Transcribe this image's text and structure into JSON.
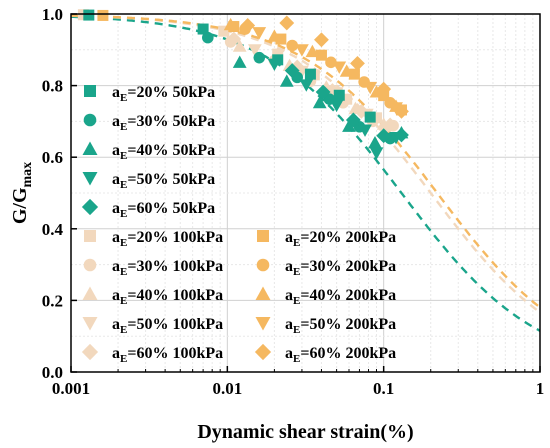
{
  "chart_data": {
    "type": "scatter",
    "title": "",
    "xlabel": "Dynamic shear strain(%)",
    "ylabel": {
      "main": "G/G",
      "sub": "max"
    },
    "x_scale": "log",
    "xlim": [
      0.001,
      1
    ],
    "ylim": [
      0.0,
      1.0
    ],
    "x_ticks": [
      {
        "value": 0.001,
        "label": "0.001"
      },
      {
        "value": 0.01,
        "label": "0.01"
      },
      {
        "value": 0.1,
        "label": "0.1"
      },
      {
        "value": 1,
        "label": "1"
      }
    ],
    "y_ticks": [
      {
        "value": 0.0,
        "label": "0.0"
      },
      {
        "value": 0.2,
        "label": "0.2"
      },
      {
        "value": 0.4,
        "label": "0.4"
      },
      {
        "value": 0.6,
        "label": "0.6"
      },
      {
        "value": 0.8,
        "label": "0.8"
      },
      {
        "value": 1.0,
        "label": "1.0"
      }
    ],
    "grid": true,
    "legend_placement": "bottom-left, two columns",
    "colors": {
      "50kPa": "#1aa58b",
      "100kPa": "#f2d8bd",
      "200kPa": "#f5b860"
    },
    "series": [
      {
        "name": "a_E=20% 50kPa",
        "legend_main": "a",
        "legend_sub": "E",
        "legend_rest": "=20% 50kPa",
        "group": "50kPa",
        "marker": "square",
        "points": [
          [
            0.0013,
            0.997
          ],
          [
            0.007,
            0.958
          ],
          [
            0.021,
            0.872
          ],
          [
            0.034,
            0.832
          ],
          [
            0.052,
            0.773
          ],
          [
            0.082,
            0.712
          ]
        ]
      },
      {
        "name": "a_E=30% 50kPa",
        "legend_main": "a",
        "legend_sub": "E",
        "legend_rest": "=30% 50kPa",
        "group": "50kPa",
        "marker": "circle",
        "points": [
          [
            0.0075,
            0.934
          ],
          [
            0.016,
            0.878
          ],
          [
            0.028,
            0.823
          ],
          [
            0.045,
            0.762
          ],
          [
            0.07,
            0.685
          ],
          [
            0.11,
            0.652
          ]
        ]
      },
      {
        "name": "a_E=40% 50kPa",
        "legend_main": "a",
        "legend_sub": "E",
        "legend_rest": "=40% 50kPa",
        "group": "50kPa",
        "marker": "triangle-up",
        "points": [
          [
            0.012,
            0.865
          ],
          [
            0.024,
            0.812
          ],
          [
            0.039,
            0.752
          ],
          [
            0.06,
            0.686
          ],
          [
            0.088,
            0.64
          ],
          [
            0.13,
            0.668
          ]
        ]
      },
      {
        "name": "a_E=50% 50kPa",
        "legend_main": "a",
        "legend_sub": "E",
        "legend_rest": "=50% 50kPa",
        "group": "50kPa",
        "marker": "triangle-down",
        "points": [
          [
            0.02,
            0.86
          ],
          [
            0.032,
            0.802
          ],
          [
            0.05,
            0.745
          ],
          [
            0.076,
            0.676
          ],
          [
            0.09,
            0.612
          ],
          [
            0.12,
            0.655
          ]
        ]
      },
      {
        "name": "a_E=60% 50kPa",
        "legend_main": "a",
        "legend_sub": "E",
        "legend_rest": "=60% 50kPa",
        "group": "50kPa",
        "marker": "diamond",
        "points": [
          [
            0.026,
            0.842
          ],
          [
            0.041,
            0.782
          ],
          [
            0.064,
            0.704
          ],
          [
            0.1,
            0.66
          ],
          [
            0.13,
            0.662
          ]
        ]
      },
      {
        "name": "a_E=20% 100kPa",
        "legend_main": "a",
        "legend_sub": "E",
        "legend_rest": "=20% 100kPa",
        "group": "100kPa",
        "marker": "square",
        "points": [
          [
            0.0012,
            0.998
          ],
          [
            0.0095,
            0.952
          ],
          [
            0.021,
            0.888
          ],
          [
            0.036,
            0.83
          ],
          [
            0.058,
            0.762
          ],
          [
            0.09,
            0.71
          ]
        ]
      },
      {
        "name": "a_E=30% 100kPa",
        "legend_main": "a",
        "legend_sub": "E",
        "legend_rest": "=30% 100kPa",
        "group": "100kPa",
        "marker": "circle",
        "points": [
          [
            0.0105,
            0.922
          ],
          [
            0.02,
            0.87
          ],
          [
            0.034,
            0.812
          ],
          [
            0.055,
            0.752
          ],
          [
            0.085,
            0.7
          ],
          [
            0.115,
            0.688
          ]
        ]
      },
      {
        "name": "a_E=40% 100kPa",
        "legend_main": "a",
        "legend_sub": "E",
        "legend_rest": "=40% 100kPa",
        "group": "100kPa",
        "marker": "triangle-up",
        "points": [
          [
            0.012,
            0.91
          ],
          [
            0.025,
            0.856
          ],
          [
            0.043,
            0.796
          ],
          [
            0.066,
            0.736
          ],
          [
            0.1,
            0.692
          ]
        ]
      },
      {
        "name": "a_E=50% 100kPa",
        "legend_main": "a",
        "legend_sub": "E",
        "legend_rest": "=50% 100kPa",
        "group": "100kPa",
        "marker": "triangle-down",
        "points": [
          [
            0.015,
            0.9
          ],
          [
            0.03,
            0.84
          ],
          [
            0.05,
            0.78
          ],
          [
            0.078,
            0.72
          ],
          [
            0.105,
            0.682
          ]
        ]
      },
      {
        "name": "a_E=60% 100kPa",
        "legend_main": "a",
        "legend_sub": "E",
        "legend_rest": "=60% 100kPa",
        "group": "100kPa",
        "marker": "diamond",
        "points": [
          [
            0.011,
            0.93
          ],
          [
            0.028,
            0.852
          ],
          [
            0.047,
            0.786
          ],
          [
            0.072,
            0.728
          ],
          [
            0.11,
            0.69
          ]
        ]
      },
      {
        "name": "a_E=20% 200kPa",
        "legend_main": "a",
        "legend_sub": "E",
        "legend_rest": "=20% 200kPa",
        "group": "200kPa",
        "marker": "square",
        "points": [
          [
            0.0016,
            0.996
          ],
          [
            0.011,
            0.965
          ],
          [
            0.022,
            0.93
          ],
          [
            0.04,
            0.885
          ],
          [
            0.065,
            0.832
          ],
          [
            0.1,
            0.772
          ],
          [
            0.13,
            0.732
          ]
        ]
      },
      {
        "name": "a_E=30% 200kPa",
        "legend_main": "a",
        "legend_sub": "E",
        "legend_rest": "=30% 200kPa",
        "group": "200kPa",
        "marker": "circle",
        "points": [
          [
            0.013,
            0.958
          ],
          [
            0.026,
            0.912
          ],
          [
            0.046,
            0.865
          ],
          [
            0.075,
            0.81
          ],
          [
            0.11,
            0.752
          ]
        ]
      },
      {
        "name": "a_E=40% 200kPa",
        "legend_main": "a",
        "legend_sub": "E",
        "legend_rest": "=40% 200kPa",
        "group": "200kPa",
        "marker": "triangle-up",
        "points": [
          [
            0.0105,
            0.97
          ],
          [
            0.02,
            0.938
          ],
          [
            0.035,
            0.895
          ],
          [
            0.058,
            0.84
          ],
          [
            0.09,
            0.782
          ],
          [
            0.12,
            0.742
          ]
        ]
      },
      {
        "name": "a_E=50% 200kPa",
        "legend_main": "a",
        "legend_sub": "E",
        "legend_rest": "=50% 200kPa",
        "group": "200kPa",
        "marker": "triangle-down",
        "points": [
          [
            0.016,
            0.948
          ],
          [
            0.03,
            0.9
          ],
          [
            0.052,
            0.852
          ],
          [
            0.082,
            0.795
          ],
          [
            0.12,
            0.738
          ]
        ]
      },
      {
        "name": "a_E=60% 200kPa",
        "legend_main": "a",
        "legend_sub": "E",
        "legend_rest": "=60% 200kPa",
        "group": "200kPa",
        "marker": "diamond",
        "points": [
          [
            0.0135,
            0.968
          ],
          [
            0.024,
            0.975
          ],
          [
            0.04,
            0.928
          ],
          [
            0.068,
            0.862
          ],
          [
            0.1,
            0.79
          ],
          [
            0.13,
            0.728
          ]
        ]
      }
    ],
    "fit_curves": [
      {
        "group": "50kPa",
        "reference_strain": 0.13,
        "exponent": 1.0
      },
      {
        "group": "100kPa",
        "reference_strain": 0.2,
        "exponent": 1.0
      },
      {
        "group": "200kPa",
        "reference_strain": 0.22,
        "exponent": 1.0
      }
    ]
  }
}
